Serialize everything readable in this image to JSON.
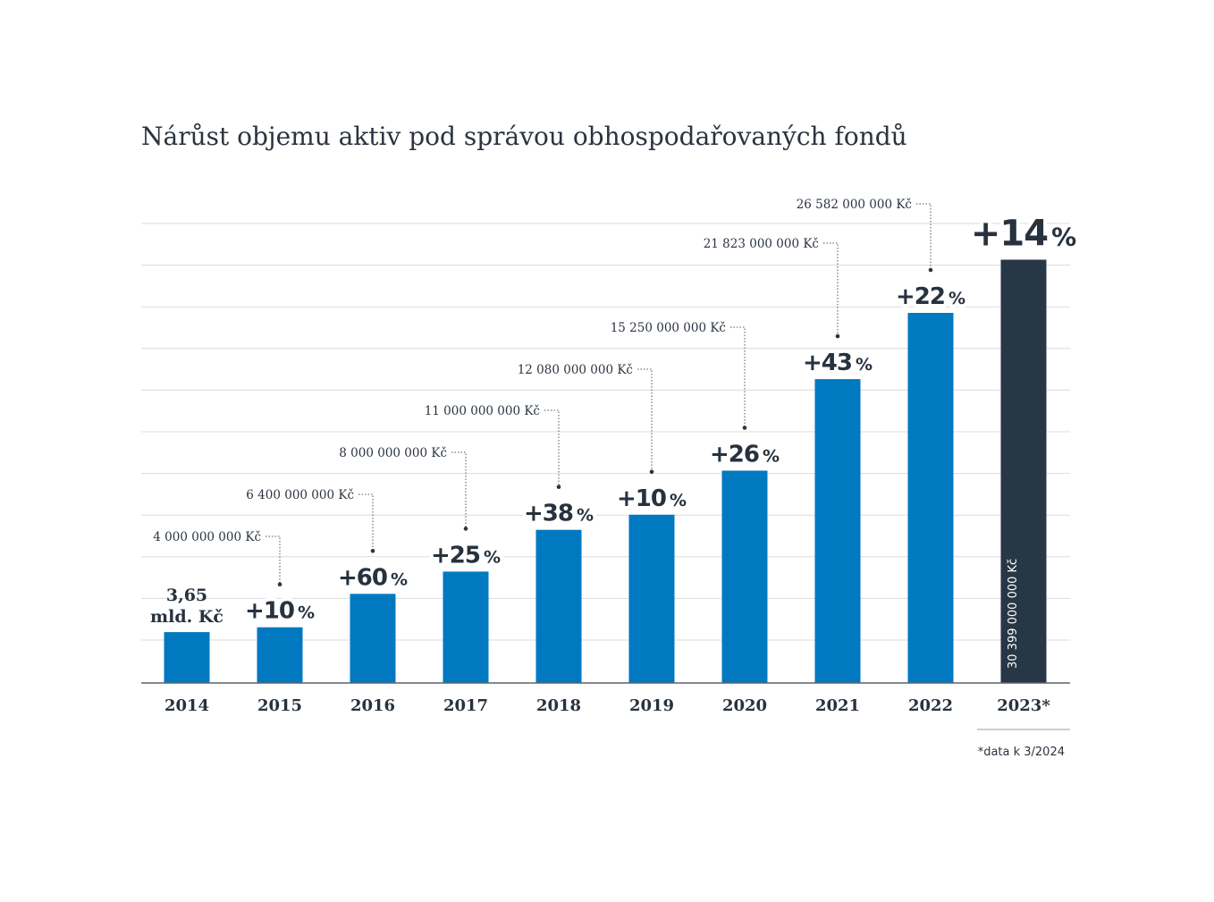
{
  "chart_data": {
    "type": "bar",
    "title": "Nárůst objemu aktiv pod správou obhospodařovaných fondů",
    "categories": [
      "2014",
      "2015",
      "2016",
      "2017",
      "2018",
      "2019",
      "2020",
      "2021",
      "2022",
      "2023*"
    ],
    "values_czk": [
      3650000000,
      4000000000,
      6400000000,
      8000000000,
      11000000000,
      12080000000,
      15250000000,
      21823000000,
      26582000000,
      30399000000
    ],
    "value_labels": [
      "",
      "4 000 000 000 Kč",
      "6 400 000 000 Kč",
      "8 000 000 000 Kč",
      "11 000 000 000 Kč",
      "12 080 000 000 Kč",
      "15 250 000 000 Kč",
      "21 823 000 000 Kč",
      "26 582 000 000 Kč",
      "30 399 000 000 Kč"
    ],
    "growth_numbers": [
      "",
      "+10",
      "+60",
      "+25",
      "+38",
      "+10",
      "+26",
      "+43",
      "+22",
      "+14"
    ],
    "percent_sign": "%",
    "base_label_line1": "3,65",
    "base_label_line2": "mld. Kč",
    "ylim": [
      0,
      33000000000
    ],
    "grid": true,
    "highlight_index": 9,
    "colors": {
      "bar": "#0079c1",
      "highlight": "#283746",
      "text": "#27323f",
      "grid": "#dcdcdc",
      "axis": "#5a6270",
      "leader": "#555555"
    }
  },
  "footnote": "*data k 3/2024"
}
